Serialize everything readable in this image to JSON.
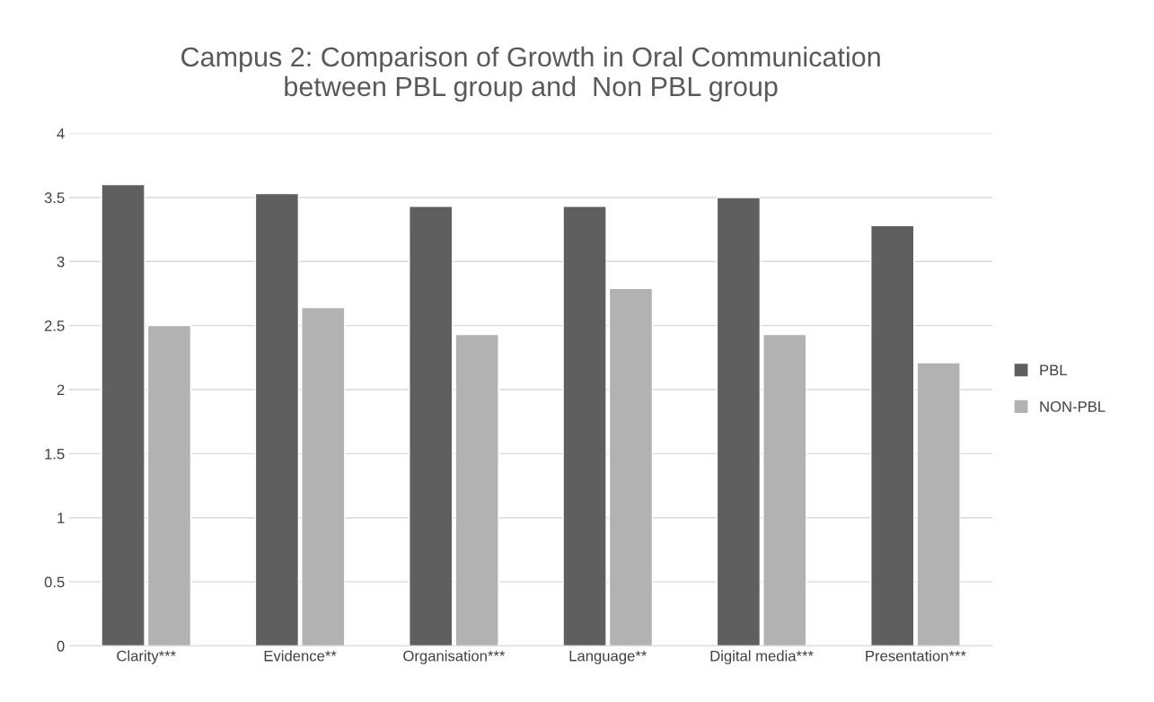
{
  "chart_data": {
    "type": "bar",
    "title": "Campus 2: Comparison of Growth in Oral Communication\nbetween PBL group and  Non PBL group",
    "categories": [
      "Clarity***",
      "Evidence**",
      "Organisation***",
      "Language**",
      "Digital media***",
      "Presentation***"
    ],
    "series": [
      {
        "name": "PBL",
        "color": "#5f5f5f",
        "values": [
          3.6,
          3.53,
          3.43,
          3.43,
          3.5,
          3.28
        ]
      },
      {
        "name": "NON-PBL",
        "color": "#b2b2b2",
        "values": [
          2.5,
          2.64,
          2.43,
          2.79,
          2.43,
          2.21
        ]
      }
    ],
    "ylim": [
      0,
      4
    ],
    "yticks": [
      0,
      0.5,
      1,
      1.5,
      2,
      2.5,
      3,
      3.5,
      4
    ],
    "grid": "y",
    "legend": "right"
  }
}
